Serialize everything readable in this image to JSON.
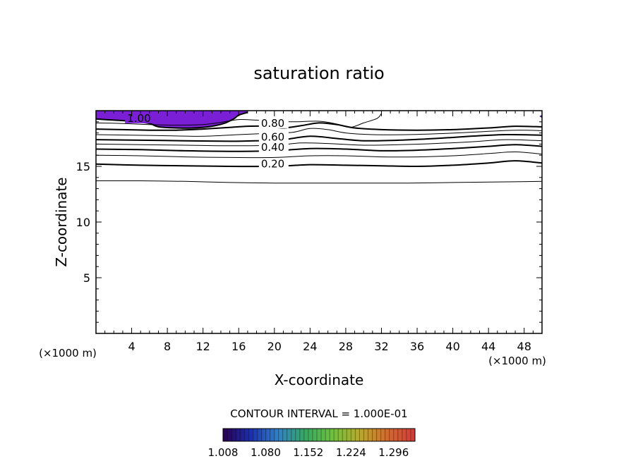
{
  "chart_data": {
    "type": "contour",
    "title": "saturation ratio",
    "xlabel": "X-coordinate",
    "ylabel": "Z-coordinate",
    "x_unit": "(×1000 m)",
    "xlim": [
      0,
      50
    ],
    "ylim": [
      0,
      20
    ],
    "x_ticks": [
      4,
      8,
      12,
      16,
      20,
      24,
      28,
      32,
      36,
      40,
      44,
      48
    ],
    "y_ticks": [
      5,
      10,
      15
    ],
    "contour_interval_label": "CONTOUR INTERVAL = 1.000E-01",
    "contour_labels": [
      "1.00",
      "0.80",
      "0.60",
      "0.40",
      "0.20"
    ],
    "shaded_region": {
      "min_value": 1.0,
      "color": "#7a1fd6"
    },
    "colorbar": {
      "tick_labels": [
        "1.008",
        "1.080",
        "1.152",
        "1.224",
        "1.296"
      ],
      "range": [
        1.008,
        1.332
      ],
      "colors": [
        "#2a0050",
        "#1b2fb0",
        "#2f80c8",
        "#35a860",
        "#6fc040",
        "#b8a830",
        "#d06a30",
        "#d03a3a"
      ]
    },
    "contour_lines": [
      {
        "level": 0.1,
        "points": [
          [
            0,
            13.7
          ],
          [
            5,
            13.7
          ],
          [
            10,
            13.65
          ],
          [
            15,
            13.55
          ],
          [
            20,
            13.5
          ],
          [
            25,
            13.5
          ],
          [
            30,
            13.5
          ],
          [
            35,
            13.5
          ],
          [
            40,
            13.55
          ],
          [
            45,
            13.6
          ],
          [
            50,
            13.65
          ]
        ]
      },
      {
        "level": 0.2,
        "points": [
          [
            0,
            15.2
          ],
          [
            5,
            15.1
          ],
          [
            10,
            15.05
          ],
          [
            15,
            15.0
          ],
          [
            20,
            15.0
          ],
          [
            24,
            15.15
          ],
          [
            28,
            15.1
          ],
          [
            32,
            15.05
          ],
          [
            36,
            15.0
          ],
          [
            40,
            15.1
          ],
          [
            44,
            15.3
          ],
          [
            47,
            15.5
          ],
          [
            50,
            15.3
          ]
        ]
      },
      {
        "level": 0.3,
        "points": [
          [
            0,
            16.0
          ],
          [
            5,
            15.95
          ],
          [
            10,
            15.85
          ],
          [
            15,
            15.8
          ],
          [
            20,
            15.8
          ],
          [
            24,
            15.95
          ],
          [
            28,
            15.95
          ],
          [
            32,
            15.85
          ],
          [
            36,
            15.85
          ],
          [
            40,
            15.95
          ],
          [
            44,
            16.15
          ],
          [
            47,
            16.3
          ],
          [
            50,
            16.1
          ]
        ]
      },
      {
        "level": 0.4,
        "points": [
          [
            0,
            16.55
          ],
          [
            5,
            16.5
          ],
          [
            10,
            16.4
          ],
          [
            15,
            16.35
          ],
          [
            20,
            16.4
          ],
          [
            24,
            16.6
          ],
          [
            28,
            16.55
          ],
          [
            32,
            16.4
          ],
          [
            36,
            16.45
          ],
          [
            40,
            16.6
          ],
          [
            44,
            16.8
          ],
          [
            47,
            16.95
          ],
          [
            50,
            16.8
          ]
        ]
      },
      {
        "level": 0.5,
        "points": [
          [
            0,
            17.0
          ],
          [
            5,
            16.95
          ],
          [
            10,
            16.9
          ],
          [
            15,
            16.85
          ],
          [
            20,
            16.9
          ],
          [
            23,
            17.1
          ],
          [
            26,
            17.05
          ],
          [
            30,
            16.9
          ],
          [
            34,
            16.95
          ],
          [
            38,
            17.05
          ],
          [
            42,
            17.2
          ],
          [
            46,
            17.4
          ],
          [
            50,
            17.3
          ]
        ]
      },
      {
        "level": 0.6,
        "points": [
          [
            0,
            17.4
          ],
          [
            5,
            17.35
          ],
          [
            10,
            17.3
          ],
          [
            15,
            17.25
          ],
          [
            18,
            17.3
          ],
          [
            21,
            17.4
          ],
          [
            24,
            17.7
          ],
          [
            27,
            17.5
          ],
          [
            30,
            17.3
          ],
          [
            34,
            17.35
          ],
          [
            38,
            17.5
          ],
          [
            42,
            17.7
          ],
          [
            46,
            17.85
          ],
          [
            50,
            17.8
          ]
        ]
      },
      {
        "level": 0.7,
        "points": [
          [
            0,
            17.85
          ],
          [
            4,
            17.8
          ],
          [
            8,
            17.75
          ],
          [
            12,
            17.7
          ],
          [
            16,
            17.85
          ],
          [
            19,
            17.95
          ],
          [
            22,
            18.05
          ],
          [
            24,
            18.4
          ],
          [
            26,
            18.3
          ],
          [
            28,
            18.0
          ],
          [
            31,
            17.85
          ],
          [
            35,
            17.85
          ],
          [
            39,
            17.95
          ],
          [
            43,
            18.1
          ],
          [
            47,
            18.25
          ],
          [
            50,
            18.2
          ]
        ]
      },
      {
        "level": 0.8,
        "points": [
          [
            0,
            18.35
          ],
          [
            3,
            18.3
          ],
          [
            6,
            18.25
          ],
          [
            9,
            18.25
          ],
          [
            12,
            18.35
          ],
          [
            15,
            18.5
          ],
          [
            17,
            18.6
          ],
          [
            19,
            18.6
          ],
          [
            21,
            18.45
          ],
          [
            23,
            18.65
          ],
          [
            25,
            18.9
          ],
          [
            27,
            18.75
          ],
          [
            29,
            18.45
          ],
          [
            32,
            18.3
          ],
          [
            36,
            18.25
          ],
          [
            40,
            18.3
          ],
          [
            44,
            18.45
          ],
          [
            47,
            18.6
          ],
          [
            50,
            18.55
          ]
        ]
      },
      {
        "level": 0.9,
        "points": [
          [
            0,
            18.9
          ],
          [
            3,
            18.85
          ],
          [
            6,
            18.75
          ],
          [
            9,
            18.7
          ],
          [
            12,
            18.75
          ],
          [
            14,
            18.95
          ],
          [
            16,
            19.2
          ],
          [
            18,
            19.15
          ],
          [
            20,
            19.1
          ],
          [
            22,
            19.0
          ],
          [
            25,
            19.05
          ],
          [
            27,
            18.8
          ],
          [
            28.5,
            18.5
          ],
          [
            30,
            18.9
          ],
          [
            31.5,
            19.3
          ],
          [
            32,
            19.75
          ]
        ]
      },
      {
        "level": 1.0,
        "points": [
          [
            0,
            19.25
          ],
          [
            2,
            19.15
          ],
          [
            4,
            19.05
          ],
          [
            6,
            18.85
          ],
          [
            7,
            18.55
          ],
          [
            9,
            18.45
          ],
          [
            11,
            18.45
          ],
          [
            13,
            18.6
          ],
          [
            14.5,
            18.9
          ],
          [
            15.5,
            19.3
          ],
          [
            16,
            19.6
          ],
          [
            17,
            19.85
          ]
        ]
      }
    ]
  }
}
